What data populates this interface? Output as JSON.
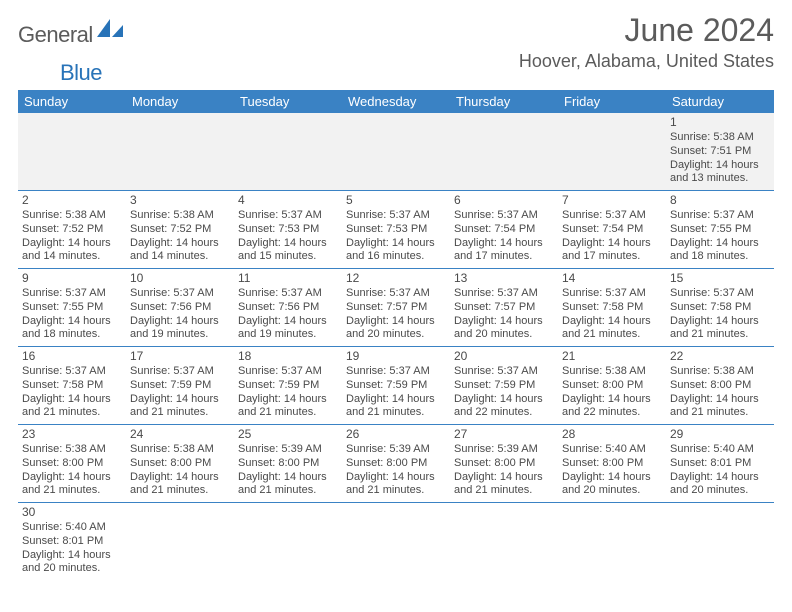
{
  "logo": {
    "word1": "General",
    "word2": "Blue",
    "brand_color": "#2873b8"
  },
  "title": "June 2024",
  "location": "Hoover, Alabama, United States",
  "header_bg": "#3a82c4",
  "weekdays": [
    "Sunday",
    "Monday",
    "Tuesday",
    "Wednesday",
    "Thursday",
    "Friday",
    "Saturday"
  ],
  "first_weekday_index": 6,
  "days": [
    {
      "n": 1,
      "sr": "5:38 AM",
      "ss": "7:51 PM",
      "dl": "14 hours and 13 minutes."
    },
    {
      "n": 2,
      "sr": "5:38 AM",
      "ss": "7:52 PM",
      "dl": "14 hours and 14 minutes."
    },
    {
      "n": 3,
      "sr": "5:38 AM",
      "ss": "7:52 PM",
      "dl": "14 hours and 14 minutes."
    },
    {
      "n": 4,
      "sr": "5:37 AM",
      "ss": "7:53 PM",
      "dl": "14 hours and 15 minutes."
    },
    {
      "n": 5,
      "sr": "5:37 AM",
      "ss": "7:53 PM",
      "dl": "14 hours and 16 minutes."
    },
    {
      "n": 6,
      "sr": "5:37 AM",
      "ss": "7:54 PM",
      "dl": "14 hours and 17 minutes."
    },
    {
      "n": 7,
      "sr": "5:37 AM",
      "ss": "7:54 PM",
      "dl": "14 hours and 17 minutes."
    },
    {
      "n": 8,
      "sr": "5:37 AM",
      "ss": "7:55 PM",
      "dl": "14 hours and 18 minutes."
    },
    {
      "n": 9,
      "sr": "5:37 AM",
      "ss": "7:55 PM",
      "dl": "14 hours and 18 minutes."
    },
    {
      "n": 10,
      "sr": "5:37 AM",
      "ss": "7:56 PM",
      "dl": "14 hours and 19 minutes."
    },
    {
      "n": 11,
      "sr": "5:37 AM",
      "ss": "7:56 PM",
      "dl": "14 hours and 19 minutes."
    },
    {
      "n": 12,
      "sr": "5:37 AM",
      "ss": "7:57 PM",
      "dl": "14 hours and 20 minutes."
    },
    {
      "n": 13,
      "sr": "5:37 AM",
      "ss": "7:57 PM",
      "dl": "14 hours and 20 minutes."
    },
    {
      "n": 14,
      "sr": "5:37 AM",
      "ss": "7:58 PM",
      "dl": "14 hours and 21 minutes."
    },
    {
      "n": 15,
      "sr": "5:37 AM",
      "ss": "7:58 PM",
      "dl": "14 hours and 21 minutes."
    },
    {
      "n": 16,
      "sr": "5:37 AM",
      "ss": "7:58 PM",
      "dl": "14 hours and 21 minutes."
    },
    {
      "n": 17,
      "sr": "5:37 AM",
      "ss": "7:59 PM",
      "dl": "14 hours and 21 minutes."
    },
    {
      "n": 18,
      "sr": "5:37 AM",
      "ss": "7:59 PM",
      "dl": "14 hours and 21 minutes."
    },
    {
      "n": 19,
      "sr": "5:37 AM",
      "ss": "7:59 PM",
      "dl": "14 hours and 21 minutes."
    },
    {
      "n": 20,
      "sr": "5:37 AM",
      "ss": "7:59 PM",
      "dl": "14 hours and 22 minutes."
    },
    {
      "n": 21,
      "sr": "5:38 AM",
      "ss": "8:00 PM",
      "dl": "14 hours and 22 minutes."
    },
    {
      "n": 22,
      "sr": "5:38 AM",
      "ss": "8:00 PM",
      "dl": "14 hours and 21 minutes."
    },
    {
      "n": 23,
      "sr": "5:38 AM",
      "ss": "8:00 PM",
      "dl": "14 hours and 21 minutes."
    },
    {
      "n": 24,
      "sr": "5:38 AM",
      "ss": "8:00 PM",
      "dl": "14 hours and 21 minutes."
    },
    {
      "n": 25,
      "sr": "5:39 AM",
      "ss": "8:00 PM",
      "dl": "14 hours and 21 minutes."
    },
    {
      "n": 26,
      "sr": "5:39 AM",
      "ss": "8:00 PM",
      "dl": "14 hours and 21 minutes."
    },
    {
      "n": 27,
      "sr": "5:39 AM",
      "ss": "8:00 PM",
      "dl": "14 hours and 21 minutes."
    },
    {
      "n": 28,
      "sr": "5:40 AM",
      "ss": "8:00 PM",
      "dl": "14 hours and 20 minutes."
    },
    {
      "n": 29,
      "sr": "5:40 AM",
      "ss": "8:01 PM",
      "dl": "14 hours and 20 minutes."
    },
    {
      "n": 30,
      "sr": "5:40 AM",
      "ss": "8:01 PM",
      "dl": "14 hours and 20 minutes."
    }
  ],
  "labels": {
    "sunrise": "Sunrise:",
    "sunset": "Sunset:",
    "daylight": "Daylight:"
  }
}
